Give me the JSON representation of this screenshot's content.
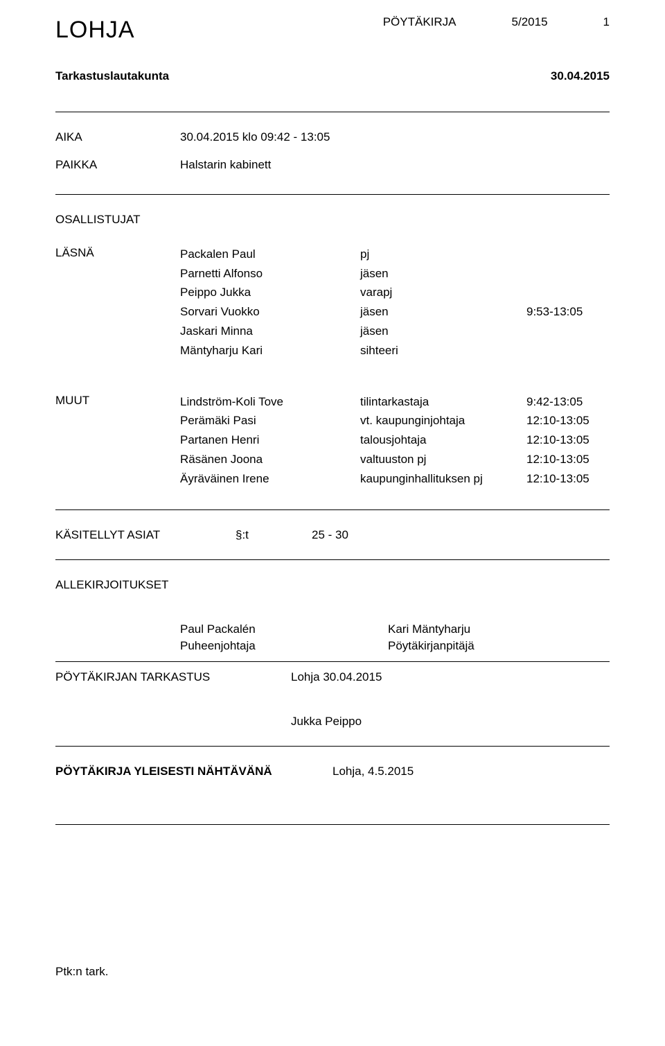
{
  "header": {
    "org": "LOHJA",
    "docType": "PÖYTÄKIRJA",
    "docNum": "5/2015",
    "pageNum": "1"
  },
  "committee": {
    "name": "Tarkastuslautakunta",
    "date": "30.04.2015"
  },
  "aika": {
    "label": "AIKA",
    "value": "30.04.2015 klo 09:42 - 13:05"
  },
  "paikka": {
    "label": "PAIKKA",
    "value": "Halstarin kabinett"
  },
  "osallistujat": {
    "label": "OSALLISTUJAT"
  },
  "lasna": {
    "label": "LÄSNÄ",
    "rows": [
      {
        "name": "Packalen Paul",
        "role": "pj",
        "time": ""
      },
      {
        "name": "Parnetti Alfonso",
        "role": "jäsen",
        "time": ""
      },
      {
        "name": "Peippo Jukka",
        "role": "varapj",
        "time": ""
      },
      {
        "name": "Sorvari Vuokko",
        "role": "jäsen",
        "time": "9:53-13:05"
      },
      {
        "name": "Jaskari Minna",
        "role": "jäsen",
        "time": ""
      },
      {
        "name": "Mäntyharju Kari",
        "role": "sihteeri",
        "time": ""
      }
    ]
  },
  "muut": {
    "label": "MUUT",
    "rows": [
      {
        "name": "Lindström-Koli Tove",
        "role": "tilintarkastaja",
        "time": "9:42-13:05"
      },
      {
        "name": "Perämäki Pasi",
        "role": "vt. kaupunginjohtaja",
        "time": "12:10-13:05"
      },
      {
        "name": "Partanen Henri",
        "role": "talousjohtaja",
        "time": "12:10-13:05"
      },
      {
        "name": "Räsänen Joona",
        "role": "valtuuston pj",
        "time": "12:10-13:05"
      },
      {
        "name": "Äyräväinen Irene",
        "role": "kaupunginhallituksen pj",
        "time": "12:10-13:05"
      }
    ]
  },
  "kasitellyt": {
    "label": "KÄSITELLYT ASIAT",
    "symbol": "§:t",
    "range": "25 - 30"
  },
  "allekirjoitukset": {
    "label": "ALLEKIRJOITUKSET",
    "left": {
      "name": "Paul Packalén",
      "title": "Puheenjohtaja"
    },
    "right": {
      "name": "Kari Mäntyharju",
      "title": "Pöytäkirjanpitäjä"
    }
  },
  "tarkastus": {
    "label": "PÖYTÄKIRJAN TARKASTUS",
    "value": "Lohja 30.04.2015",
    "tarkastaja": "Jukka Peippo"
  },
  "nahtavana": {
    "label": "PÖYTÄKIRJA YLEISESTI NÄHTÄVÄNÄ",
    "value": "Lohja, 4.5.2015"
  },
  "footer": {
    "ptk": "Ptk:n tark."
  }
}
